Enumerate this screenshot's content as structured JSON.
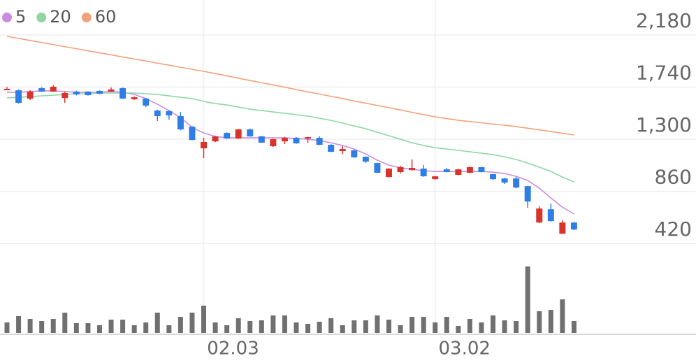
{
  "chart_data": {
    "type": "candlestick",
    "categories": [
      null,
      null,
      null,
      null,
      null,
      null,
      null,
      null,
      null,
      null,
      null,
      null,
      null,
      null,
      null,
      null,
      null,
      "02.03",
      null,
      null,
      null,
      null,
      null,
      null,
      null,
      null,
      null,
      null,
      null,
      null,
      null,
      null,
      null,
      null,
      null,
      null,
      null,
      "03.02",
      null,
      null,
      null,
      null,
      null,
      null,
      null,
      null,
      null,
      null,
      null,
      null
    ],
    "open": [
      1720,
      1713,
      1643,
      1731,
      1702,
      1648,
      1702,
      1702,
      1708,
      1702,
      1731,
      1637,
      1643,
      1542,
      1537,
      1495,
      1406,
      1223,
      1282,
      1353,
      1306,
      1383,
      1324,
      1241,
      1282,
      1312,
      1306,
      1312,
      1253,
      1200,
      1206,
      1152,
      1099,
      981,
      1023,
      1040,
      1052,
      963,
      1046,
      999,
      1017,
      1064,
      1005,
      969,
      969,
      904,
      597,
      709,
      503,
      597
    ],
    "high": [
      1740,
      1720,
      1713,
      1740,
      1755,
      1700,
      1710,
      1705,
      1712,
      1737,
      1737,
      1660,
      1650,
      1550,
      1545,
      1530,
      1410,
      1312,
      1330,
      1358,
      1388,
      1390,
      1328,
      1305,
      1320,
      1318,
      1320,
      1325,
      1258,
      1241,
      1210,
      1155,
      1102,
      1055,
      1076,
      1129,
      1082,
      990,
      1058,
      1050,
      1070,
      1068,
      1008,
      972,
      982,
      907,
      733,
      757,
      615,
      602
    ],
    "low": [
      1715,
      1600,
      1630,
      1700,
      1700,
      1607,
      1670,
      1668,
      1680,
      1700,
      1640,
      1632,
      1570,
      1454,
      1466,
      1375,
      1290,
      1140,
      1275,
      1302,
      1302,
      1320,
      1268,
      1235,
      1259,
      1262,
      1270,
      1250,
      1190,
      1176,
      1143,
      1100,
      1014,
      977,
      1012,
      1036,
      983,
      960,
      1020,
      996,
      1013,
      1019,
      958,
      922,
      886,
      721,
      593,
      605,
      500,
      533
    ],
    "close": [
      1725,
      1607,
      1702,
      1702,
      1743,
      1690,
      1678,
      1672,
      1684,
      1720,
      1643,
      1654,
      1584,
      1495,
      1501,
      1383,
      1294,
      1277,
      1323,
      1306,
      1383,
      1324,
      1271,
      1300,
      1312,
      1265,
      1318,
      1253,
      1194,
      1218,
      1147,
      1111,
      1017,
      1052,
      1064,
      1058,
      987,
      987,
      1023,
      1046,
      1064,
      1023,
      963,
      934,
      892,
      774,
      715,
      609,
      597,
      538
    ],
    "up_color": "#d9342b",
    "down_color": "#2f7ee8",
    "series": [
      {
        "name": "5",
        "color": "#cc8be3",
        "values": [
          1696,
          1696,
          1702,
          1708,
          1708,
          1702,
          1696,
          1696,
          1696,
          1702,
          1696,
          1678,
          1643,
          1595,
          1542,
          1483,
          1400,
          1353,
          1324,
          1312,
          1312,
          1312,
          1312,
          1312,
          1312,
          1306,
          1300,
          1288,
          1270,
          1247,
          1217,
          1176,
          1123,
          1081,
          1058,
          1046,
          1034,
          1028,
          1028,
          1028,
          1028,
          1028,
          1022,
          1011,
          987,
          952,
          887,
          804,
          727,
          668
        ]
      },
      {
        "name": "20",
        "color": "#8fd6a3",
        "values": [
          1648,
          1654,
          1660,
          1666,
          1672,
          1678,
          1684,
          1684,
          1690,
          1690,
          1690,
          1690,
          1684,
          1678,
          1666,
          1654,
          1643,
          1619,
          1601,
          1589,
          1572,
          1554,
          1542,
          1530,
          1519,
          1507,
          1495,
          1477,
          1459,
          1436,
          1412,
          1389,
          1359,
          1330,
          1300,
          1270,
          1247,
          1229,
          1217,
          1206,
          1194,
          1182,
          1170,
          1152,
          1129,
          1099,
          1064,
          1028,
          981,
          940
        ]
      },
      {
        "name": "60",
        "color": "#f0a27c",
        "values": [
          2168,
          2151,
          2133,
          2116,
          2099,
          2081,
          2064,
          2046,
          2029,
          2012,
          1994,
          1977,
          1960,
          1942,
          1925,
          1907,
          1890,
          1873,
          1854,
          1835,
          1815,
          1796,
          1777,
          1758,
          1739,
          1719,
          1700,
          1681,
          1662,
          1643,
          1623,
          1604,
          1585,
          1566,
          1547,
          1527,
          1508,
          1489,
          1474,
          1460,
          1449,
          1439,
          1428,
          1418,
          1407,
          1393,
          1379,
          1365,
          1350,
          1336
        ]
      }
    ],
    "ylim": [
      350,
      2475
    ],
    "yticks": [
      {
        "value": 2180,
        "label": "2,180"
      },
      {
        "value": 1740,
        "label": "1,740"
      },
      {
        "value": 1300,
        "label": "1,300"
      },
      860,
      420
    ],
    "grid": true,
    "legend": "top-left",
    "volume": {
      "color": "#707070",
      "ylim": [
        0,
        110
      ],
      "values": [
        15,
        24,
        20,
        17,
        20,
        29,
        14,
        14,
        11,
        19,
        19,
        11,
        15,
        29,
        11,
        23,
        29,
        39,
        15,
        11,
        21,
        17,
        18,
        25,
        25,
        15,
        13,
        16,
        21,
        11,
        18,
        18,
        25,
        19,
        11,
        23,
        23,
        15,
        23,
        10,
        20,
        15,
        25,
        18,
        17,
        95,
        31,
        33,
        48,
        17
      ]
    }
  }
}
